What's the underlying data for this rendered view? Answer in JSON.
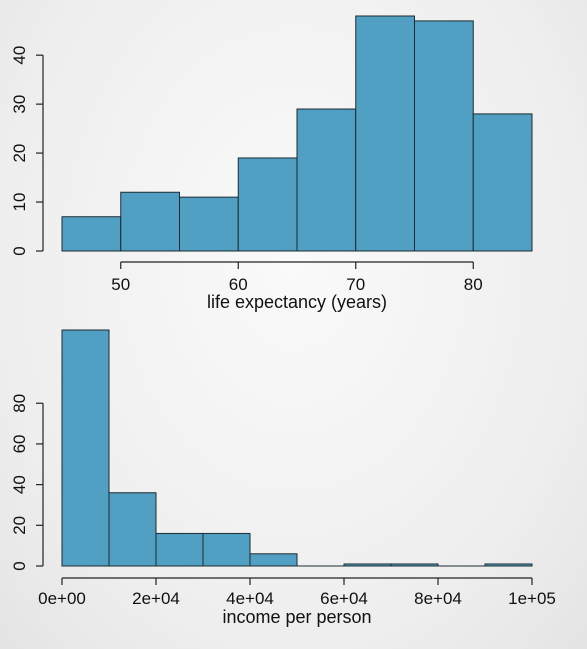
{
  "chart_data": [
    {
      "type": "histogram",
      "title": "",
      "xlabel": "life expectancy (years)",
      "ylabel": "",
      "bin_edges": [
        45,
        50,
        55,
        60,
        65,
        70,
        75,
        80,
        85
      ],
      "values": [
        7,
        12,
        11,
        19,
        29,
        48,
        47,
        28
      ],
      "xlim": [
        45,
        85
      ],
      "ylim": [
        0,
        48
      ],
      "x_ticks": [
        50,
        60,
        70,
        80
      ],
      "x_tick_labels": [
        "50",
        "60",
        "70",
        "80"
      ],
      "y_ticks": [
        0,
        10,
        20,
        30,
        40
      ],
      "y_tick_labels": [
        "0",
        "10",
        "20",
        "30",
        "40"
      ],
      "bar_color": "#519fc2",
      "grid": false
    },
    {
      "type": "histogram",
      "title": "",
      "xlabel": "income per person",
      "ylabel": "",
      "bin_edges": [
        0,
        10000,
        20000,
        30000,
        40000,
        50000,
        60000,
        70000,
        80000,
        90000,
        100000
      ],
      "values": [
        116,
        36,
        16,
        16,
        6,
        0,
        1,
        1,
        0,
        1
      ],
      "xlim": [
        0,
        100000
      ],
      "ylim": [
        0,
        116
      ],
      "x_ticks": [
        0,
        20000,
        40000,
        60000,
        80000,
        100000
      ],
      "x_tick_labels": [
        "0e+00",
        "2e+04",
        "4e+04",
        "6e+04",
        "8e+04",
        "1e+05"
      ],
      "y_ticks": [
        0,
        20,
        40,
        60,
        80
      ],
      "y_tick_labels": [
        "0",
        "20",
        "40",
        "60",
        "80"
      ],
      "bar_color": "#519fc2",
      "grid": false
    }
  ]
}
